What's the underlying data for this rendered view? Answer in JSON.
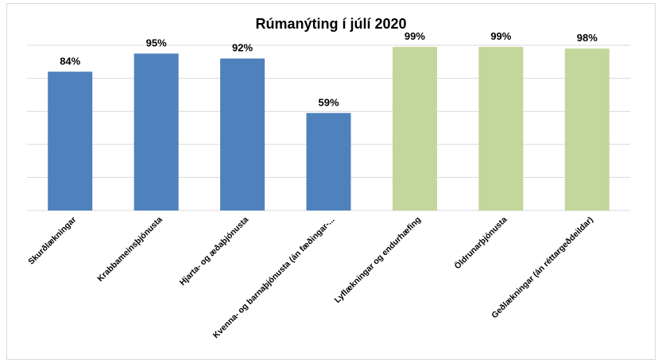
{
  "chart_data": {
    "type": "bar",
    "title": "Rúmanýting í júlí 2020",
    "xlabel": "",
    "ylabel": "",
    "ylim": [
      0,
      100
    ],
    "grid": true,
    "legend": "none",
    "categories": [
      "Skurðlækningar",
      "Krabbameinsþjónusta",
      "Hjarta- og æðaþjónusta",
      "Kvenna- og barnaþjónusta (án fæðingar-...",
      "Lyflækningar og endurhæfing",
      "Öldrunarþjónusta",
      "Geðlækningar (án réttargeðdeildar)"
    ],
    "values": [
      84,
      95,
      92,
      59,
      99,
      99,
      98
    ],
    "data_labels": [
      "84%",
      "95%",
      "92%",
      "59%",
      "99%",
      "99%",
      "98%"
    ],
    "bar_colors": [
      "#4f81bd",
      "#4f81bd",
      "#4f81bd",
      "#4f81bd",
      "#c3d69b",
      "#c3d69b",
      "#c3d69b"
    ],
    "gridline_color": "#d9d9d9"
  }
}
